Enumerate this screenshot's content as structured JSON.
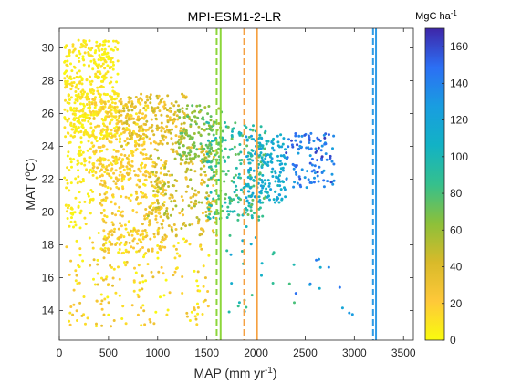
{
  "chart_data": {
    "type": "scatter",
    "title": "MPI-ESM1-2-LR",
    "xlabel_main": "MAP (mm yr",
    "xlabel_sup": "-1",
    "xlabel_end": ")",
    "ylabel_main": "MAT (",
    "ylabel_sup": "o",
    "ylabel_end": "C)",
    "xlim": [
      0,
      3600
    ],
    "ylim": [
      12.2,
      31.2
    ],
    "x_ticks": [
      0,
      500,
      1000,
      1500,
      2000,
      2500,
      3000,
      3500
    ],
    "x_tick_labels": [
      "0",
      "500",
      "1000",
      "1500",
      "2000",
      "2500",
      "3000",
      "3500"
    ],
    "y_ticks": [
      14,
      16,
      18,
      20,
      22,
      24,
      26,
      28,
      30
    ],
    "y_tick_labels": [
      "14",
      "16",
      "18",
      "20",
      "22",
      "24",
      "26",
      "28",
      "30"
    ],
    "grid": false,
    "colorbar": {
      "unit_main": "MgC ha",
      "unit_sup": "-1",
      "min": 0,
      "max": 170,
      "ticks": [
        0,
        20,
        40,
        60,
        80,
        100,
        120,
        140,
        160
      ],
      "tick_labels": [
        "0",
        "20",
        "40",
        "60",
        "80",
        "100",
        "120",
        "140",
        "160"
      ],
      "colormap": "parula"
    },
    "vertical_lines": [
      {
        "x": 1600,
        "style": "dashed",
        "color": "#8cd63a"
      },
      {
        "x": 1640,
        "style": "solid",
        "color": "#8cd63a"
      },
      {
        "x": 1880,
        "style": "dashed",
        "color": "#f5a040"
      },
      {
        "x": 2010,
        "style": "solid",
        "color": "#f5a040"
      },
      {
        "x": 3190,
        "style": "dashed",
        "color": "#2f9be6"
      },
      {
        "x": 3220,
        "style": "solid",
        "color": "#2f9be6"
      }
    ],
    "point_clusters": [
      {
        "x_range": [
          50,
          600
        ],
        "y_range": [
          24.5,
          30.5
        ],
        "n": 420,
        "c_range": [
          0,
          15
        ]
      },
      {
        "x_range": [
          50,
          350
        ],
        "y_range": [
          19.0,
          26.0
        ],
        "n": 120,
        "c_range": [
          0,
          12
        ]
      },
      {
        "x_range": [
          300,
          900
        ],
        "y_range": [
          22.0,
          27.0
        ],
        "n": 280,
        "c_range": [
          5,
          30
        ]
      },
      {
        "x_range": [
          400,
          1100
        ],
        "y_range": [
          17.5,
          23.5
        ],
        "n": 280,
        "c_range": [
          5,
          35
        ]
      },
      {
        "x_range": [
          600,
          1300
        ],
        "y_range": [
          24.0,
          27.2
        ],
        "n": 200,
        "c_range": [
          20,
          50
        ]
      },
      {
        "x_range": [
          900,
          1600
        ],
        "y_range": [
          18.5,
          24.0
        ],
        "n": 230,
        "c_range": [
          20,
          60
        ]
      },
      {
        "x_range": [
          1200,
          1650
        ],
        "y_range": [
          23.0,
          26.5
        ],
        "n": 150,
        "c_range": [
          50,
          80
        ]
      },
      {
        "x_range": [
          1500,
          2100
        ],
        "y_range": [
          19.5,
          25.5
        ],
        "n": 220,
        "c_range": [
          70,
          105
        ]
      },
      {
        "x_range": [
          1900,
          2300
        ],
        "y_range": [
          20.5,
          24.8
        ],
        "n": 170,
        "c_range": [
          100,
          130
        ]
      },
      {
        "x_range": [
          2300,
          2800
        ],
        "y_range": [
          21.5,
          24.8
        ],
        "n": 110,
        "c_range": [
          125,
          165
        ]
      },
      {
        "x_range": [
          50,
          1600
        ],
        "y_range": [
          13.0,
          18.5
        ],
        "n": 180,
        "c_range": [
          0,
          35
        ]
      },
      {
        "x_range": [
          1700,
          2400
        ],
        "y_range": [
          13.5,
          19.5
        ],
        "n": 25,
        "c_range": [
          80,
          120
        ]
      },
      {
        "x_range": [
          2400,
          3000
        ],
        "y_range": [
          13.0,
          17.5
        ],
        "n": 12,
        "c_range": [
          110,
          150
        ]
      }
    ]
  }
}
